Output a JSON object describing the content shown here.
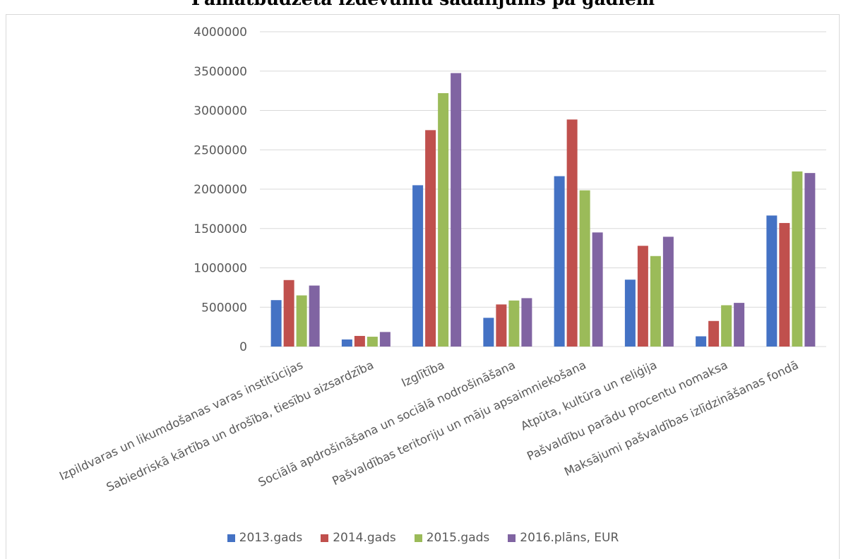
{
  "chart_data": {
    "type": "bar",
    "title": "Pamatbudžeta izdevumu sadalījums pa gadiem",
    "categories": [
      "Izpildvaras un likumdošanas varas institūcijas",
      "Sabiedriskā kārtība un drošība, tiesību aizsardzība",
      "Izglītība",
      "Sociālā apdrošināšana un sociālā nodrošināšana",
      "Pašvaldības teritoriju un māju apsaimniekošana",
      "Atpūta, kultūra un reliģija",
      "Pašvaldību parādu procentu nomaksa",
      "Maksājumi pašvaldības izlīdzināšanas fondā"
    ],
    "series": [
      {
        "name": "2013.gads",
        "color": "#4472c4",
        "values": [
          590000,
          90000,
          2050000,
          365000,
          2165000,
          850000,
          130000,
          1665000
        ]
      },
      {
        "name": "2014.gads",
        "color": "#c0504d",
        "values": [
          845000,
          135000,
          2750000,
          535000,
          2885000,
          1280000,
          325000,
          1570000
        ]
      },
      {
        "name": "2015.gads",
        "color": "#9bbb59",
        "values": [
          650000,
          125000,
          3220000,
          585000,
          1985000,
          1150000,
          525000,
          2225000
        ]
      },
      {
        "name": "2016.plāns, EUR",
        "color": "#8064a2",
        "values": [
          775000,
          185000,
          3475000,
          615000,
          1450000,
          1395000,
          555000,
          2205000
        ]
      }
    ],
    "yticks": [
      "4000000",
      "3500000",
      "3000000",
      "2500000",
      "2000000",
      "1500000",
      "1000000",
      "500000",
      "0"
    ],
    "ylim": [
      0,
      4000000
    ],
    "grid": true,
    "legend_position": "bottom"
  }
}
